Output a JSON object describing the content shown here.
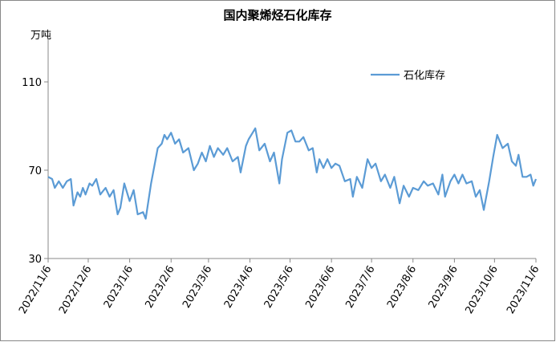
{
  "chart_data": {
    "type": "line",
    "title": "国内聚烯烃石化库存",
    "y_label": "万吨",
    "x": [
      "2022/11/6",
      "2022/11/9",
      "2022/11/11",
      "2022/11/14",
      "2022/11/17",
      "2022/11/20",
      "2022/11/23",
      "2022/11/25",
      "2022/11/28",
      "2022/11/30",
      "2022/12/2",
      "2022/12/4",
      "2022/12/7",
      "2022/12/9",
      "2022/12/12",
      "2022/12/15",
      "2022/12/19",
      "2022/12/22",
      "2022/12/25",
      "2022/12/28",
      "2022/12/30",
      "2023/1/2",
      "2023/1/6",
      "2023/1/9",
      "2023/1/12",
      "2023/1/16",
      "2023/1/18",
      "2023/1/22",
      "2023/1/27",
      "2023/1/30",
      "2023/2/1",
      "2023/2/3",
      "2023/2/6",
      "2023/2/9",
      "2023/2/12",
      "2023/2/15",
      "2023/2/19",
      "2023/2/23",
      "2023/2/26",
      "2023/3/1",
      "2023/3/4",
      "2023/3/7",
      "2023/3/10",
      "2023/3/13",
      "2023/3/17",
      "2023/3/20",
      "2023/3/24",
      "2023/3/28",
      "2023/3/30",
      "2023/4/3",
      "2023/4/5",
      "2023/4/8",
      "2023/4/10",
      "2023/4/13",
      "2023/4/17",
      "2023/4/21",
      "2023/4/24",
      "2023/4/28",
      "2023/4/30",
      "2023/5/4",
      "2023/5/7",
      "2023/5/10",
      "2023/5/13",
      "2023/5/16",
      "2023/5/20",
      "2023/5/23",
      "2023/5/26",
      "2023/5/28",
      "2023/5/31",
      "2023/6/3",
      "2023/6/6",
      "2023/6/9",
      "2023/6/12",
      "2023/6/16",
      "2023/6/20",
      "2023/6/22",
      "2023/6/25",
      "2023/6/29",
      "2023/7/3",
      "2023/7/6",
      "2023/7/9",
      "2023/7/13",
      "2023/7/16",
      "2023/7/20",
      "2023/7/23",
      "2023/7/27",
      "2023/7/30",
      "2023/8/3",
      "2023/8/6",
      "2023/8/10",
      "2023/8/14",
      "2023/8/17",
      "2023/8/21",
      "2023/8/25",
      "2023/8/28",
      "2023/8/30",
      "2023/9/3",
      "2023/9/6",
      "2023/9/9",
      "2023/9/12",
      "2023/9/15",
      "2023/9/19",
      "2023/9/22",
      "2023/9/25",
      "2023/9/28",
      "2023/10/2",
      "2023/10/5",
      "2023/10/8",
      "2023/10/12",
      "2023/10/16",
      "2023/10/19",
      "2023/10/22",
      "2023/10/24",
      "2023/10/27",
      "2023/10/30",
      "2023/11/2",
      "2023/11/4",
      "2023/11/6"
    ],
    "series": [
      {
        "name": "石化库存",
        "color": "#5b9bd5",
        "values": [
          67,
          66,
          62,
          65,
          62,
          65,
          66,
          54,
          60,
          58,
          62,
          59,
          64,
          63,
          66,
          59,
          62,
          58,
          61,
          50,
          53,
          64,
          56,
          61,
          50,
          51,
          48,
          64,
          80,
          82,
          86,
          84,
          87,
          82,
          84,
          78,
          80,
          70,
          73,
          78,
          74,
          81,
          76,
          80,
          77,
          80,
          74,
          76,
          69,
          81,
          84,
          87,
          89,
          79,
          82,
          74,
          78,
          64,
          75,
          87,
          88,
          83,
          83,
          85,
          79,
          80,
          69,
          75,
          71,
          75,
          71,
          73,
          72,
          65,
          66,
          58,
          67,
          62,
          75,
          71,
          73,
          65,
          68,
          62,
          67,
          55,
          63,
          58,
          62,
          61,
          65,
          63,
          64,
          59,
          68,
          58,
          65,
          68,
          64,
          68,
          64,
          65,
          58,
          61,
          52,
          65,
          76,
          86,
          80,
          82,
          74,
          72,
          77,
          67,
          67,
          68,
          63,
          66
        ]
      }
    ],
    "xlim": [
      "2022/11/6",
      "2023/11/6"
    ],
    "xticks": [
      "2022/11/6",
      "2022/12/6",
      "2023/1/6",
      "2023/2/6",
      "2023/3/6",
      "2023/4/6",
      "2023/5/6",
      "2023/6/6",
      "2023/7/6",
      "2023/8/6",
      "2023/9/6",
      "2023/10/6",
      "2023/11/6"
    ],
    "ylim": [
      30,
      130
    ],
    "yticks": [
      30,
      70,
      110
    ],
    "grid": false,
    "legend": "top-right"
  }
}
